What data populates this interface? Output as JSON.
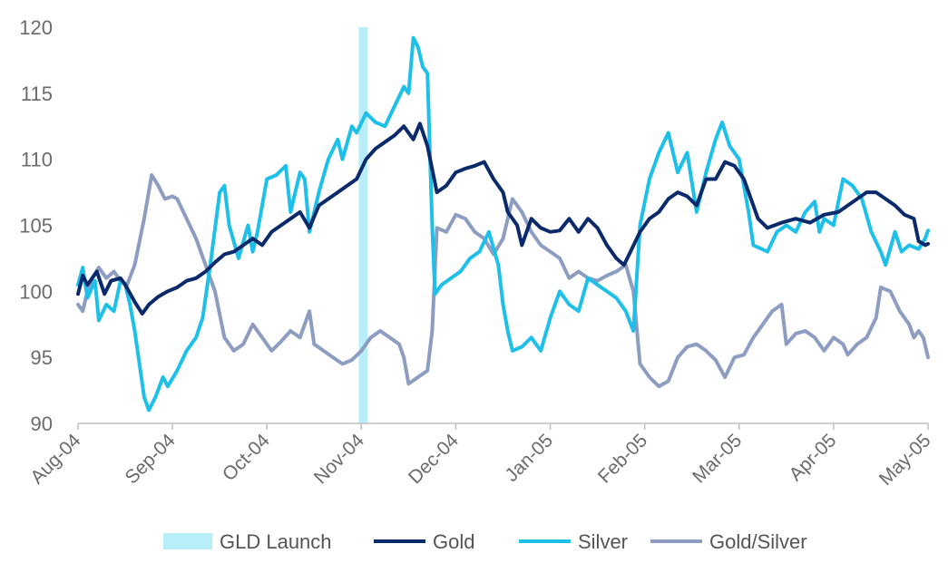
{
  "chart_data": {
    "type": "line",
    "title": "",
    "xlabel": "",
    "ylabel": "",
    "ylim": [
      90,
      120
    ],
    "yticks": [
      "90",
      "95",
      "100",
      "105",
      "110",
      "115",
      "120"
    ],
    "xlim": [
      0,
      9
    ],
    "categories": [
      "Aug-04",
      "Sep-04",
      "Oct-04",
      "Nov-04",
      "Dec-04",
      "Jan-05",
      "Feb-05",
      "Mar-05",
      "Apr-05",
      "May-05"
    ],
    "grid": false,
    "legend": "bottom",
    "annotations": [
      {
        "name": "GLD Launch",
        "x": 3.02,
        "color": "#b8eef8"
      }
    ],
    "series": [
      {
        "name": "Gold",
        "color": "#0b2a6b",
        "points": [
          [
            0,
            99.8
          ],
          [
            0.05,
            101.2
          ],
          [
            0.1,
            100.5
          ],
          [
            0.2,
            101.5
          ],
          [
            0.28,
            99.8
          ],
          [
            0.35,
            100.8
          ],
          [
            0.45,
            101.0
          ],
          [
            0.5,
            100.5
          ],
          [
            0.6,
            99.2
          ],
          [
            0.68,
            98.3
          ],
          [
            0.75,
            99.0
          ],
          [
            0.85,
            99.6
          ],
          [
            0.95,
            100.0
          ],
          [
            1.05,
            100.3
          ],
          [
            1.15,
            100.8
          ],
          [
            1.25,
            101.0
          ],
          [
            1.35,
            101.5
          ],
          [
            1.45,
            102.2
          ],
          [
            1.55,
            102.8
          ],
          [
            1.65,
            103.0
          ],
          [
            1.75,
            103.5
          ],
          [
            1.85,
            104.0
          ],
          [
            1.95,
            103.5
          ],
          [
            2.05,
            104.5
          ],
          [
            2.15,
            105.0
          ],
          [
            2.25,
            105.5
          ],
          [
            2.35,
            106.0
          ],
          [
            2.45,
            104.8
          ],
          [
            2.55,
            106.5
          ],
          [
            2.65,
            107.0
          ],
          [
            2.75,
            107.5
          ],
          [
            2.85,
            108.0
          ],
          [
            2.95,
            108.5
          ],
          [
            3.05,
            110.0
          ],
          [
            3.15,
            110.8
          ],
          [
            3.25,
            111.3
          ],
          [
            3.35,
            111.8
          ],
          [
            3.45,
            112.5
          ],
          [
            3.55,
            111.5
          ],
          [
            3.62,
            112.7
          ],
          [
            3.7,
            111.0
          ],
          [
            3.8,
            107.5
          ],
          [
            3.9,
            108.0
          ],
          [
            4.0,
            109.0
          ],
          [
            4.1,
            109.3
          ],
          [
            4.2,
            109.5
          ],
          [
            4.3,
            109.8
          ],
          [
            4.4,
            108.5
          ],
          [
            4.5,
            107.5
          ],
          [
            4.55,
            106.0
          ],
          [
            4.65,
            105.0
          ],
          [
            4.7,
            103.5
          ],
          [
            4.8,
            105.5
          ],
          [
            4.9,
            104.8
          ],
          [
            5.0,
            104.5
          ],
          [
            5.1,
            104.6
          ],
          [
            5.2,
            105.5
          ],
          [
            5.3,
            104.5
          ],
          [
            5.4,
            105.5
          ],
          [
            5.5,
            104.8
          ],
          [
            5.6,
            103.5
          ],
          [
            5.7,
            102.5
          ],
          [
            5.78,
            102.0
          ],
          [
            5.85,
            103.0
          ],
          [
            5.95,
            104.5
          ],
          [
            6.05,
            105.5
          ],
          [
            6.15,
            106.0
          ],
          [
            6.25,
            107.0
          ],
          [
            6.35,
            107.5
          ],
          [
            6.45,
            107.2
          ],
          [
            6.55,
            106.5
          ],
          [
            6.65,
            108.5
          ],
          [
            6.75,
            108.5
          ],
          [
            6.85,
            109.8
          ],
          [
            6.95,
            109.5
          ],
          [
            7.05,
            108.5
          ],
          [
            7.1,
            107.5
          ],
          [
            7.2,
            105.5
          ],
          [
            7.3,
            104.8
          ],
          [
            7.45,
            105.2
          ],
          [
            7.6,
            105.5
          ],
          [
            7.75,
            105.2
          ],
          [
            7.9,
            105.8
          ],
          [
            8.05,
            106.0
          ],
          [
            8.15,
            106.5
          ],
          [
            8.25,
            107.0
          ],
          [
            8.35,
            107.5
          ],
          [
            8.45,
            107.5
          ],
          [
            8.55,
            107.0
          ],
          [
            8.65,
            106.5
          ],
          [
            8.75,
            105.8
          ],
          [
            8.85,
            105.5
          ],
          [
            8.9,
            103.8
          ],
          [
            8.97,
            103.5
          ],
          [
            9.0,
            103.6
          ]
        ]
      },
      {
        "name": "Silver",
        "color": "#1ec0ea",
        "points": [
          [
            0,
            100.5
          ],
          [
            0.05,
            101.8
          ],
          [
            0.1,
            99.5
          ],
          [
            0.18,
            100.8
          ],
          [
            0.22,
            97.8
          ],
          [
            0.3,
            99.0
          ],
          [
            0.38,
            98.5
          ],
          [
            0.45,
            100.8
          ],
          [
            0.5,
            100.5
          ],
          [
            0.55,
            99.0
          ],
          [
            0.6,
            97.0
          ],
          [
            0.65,
            94.5
          ],
          [
            0.7,
            92.0
          ],
          [
            0.75,
            91.0
          ],
          [
            0.82,
            92.0
          ],
          [
            0.9,
            93.5
          ],
          [
            0.95,
            92.8
          ],
          [
            1.05,
            94.0
          ],
          [
            1.15,
            95.5
          ],
          [
            1.25,
            96.5
          ],
          [
            1.32,
            98.0
          ],
          [
            1.4,
            102.0
          ],
          [
            1.5,
            107.5
          ],
          [
            1.55,
            108.0
          ],
          [
            1.6,
            105.0
          ],
          [
            1.7,
            102.5
          ],
          [
            1.8,
            105.0
          ],
          [
            1.85,
            103.0
          ],
          [
            1.9,
            104.5
          ],
          [
            2.0,
            108.5
          ],
          [
            2.1,
            108.8
          ],
          [
            2.2,
            109.5
          ],
          [
            2.25,
            106.0
          ],
          [
            2.35,
            109.0
          ],
          [
            2.4,
            108.5
          ],
          [
            2.45,
            104.5
          ],
          [
            2.55,
            107.5
          ],
          [
            2.65,
            110.0
          ],
          [
            2.75,
            111.5
          ],
          [
            2.8,
            110.0
          ],
          [
            2.9,
            112.5
          ],
          [
            2.95,
            112.0
          ],
          [
            3.05,
            113.5
          ],
          [
            3.15,
            112.8
          ],
          [
            3.25,
            112.5
          ],
          [
            3.35,
            114.0
          ],
          [
            3.45,
            115.5
          ],
          [
            3.5,
            115.0
          ],
          [
            3.55,
            119.2
          ],
          [
            3.6,
            118.5
          ],
          [
            3.65,
            117.0
          ],
          [
            3.7,
            116.5
          ],
          [
            3.75,
            105.0
          ],
          [
            3.78,
            99.8
          ],
          [
            3.85,
            100.5
          ],
          [
            3.95,
            101.0
          ],
          [
            4.05,
            101.5
          ],
          [
            4.15,
            102.5
          ],
          [
            4.25,
            103.0
          ],
          [
            4.35,
            104.5
          ],
          [
            4.45,
            102.0
          ],
          [
            4.5,
            99.0
          ],
          [
            4.55,
            97.0
          ],
          [
            4.6,
            95.5
          ],
          [
            4.7,
            95.8
          ],
          [
            4.8,
            96.5
          ],
          [
            4.9,
            95.5
          ],
          [
            5.0,
            98.0
          ],
          [
            5.1,
            100.0
          ],
          [
            5.2,
            99.0
          ],
          [
            5.3,
            98.5
          ],
          [
            5.4,
            101.0
          ],
          [
            5.5,
            100.5
          ],
          [
            5.6,
            100.0
          ],
          [
            5.7,
            99.5
          ],
          [
            5.8,
            98.5
          ],
          [
            5.88,
            97.0
          ],
          [
            5.95,
            105.0
          ],
          [
            6.05,
            108.5
          ],
          [
            6.15,
            110.5
          ],
          [
            6.25,
            112.0
          ],
          [
            6.35,
            109.0
          ],
          [
            6.45,
            110.5
          ],
          [
            6.55,
            106.0
          ],
          [
            6.65,
            109.0
          ],
          [
            6.75,
            111.5
          ],
          [
            6.82,
            112.8
          ],
          [
            6.9,
            111.0
          ],
          [
            7.0,
            110.0
          ],
          [
            7.1,
            106.0
          ],
          [
            7.15,
            103.5
          ],
          [
            7.3,
            103.0
          ],
          [
            7.4,
            104.5
          ],
          [
            7.5,
            105.0
          ],
          [
            7.6,
            104.5
          ],
          [
            7.7,
            106.0
          ],
          [
            7.8,
            106.8
          ],
          [
            7.85,
            104.5
          ],
          [
            7.9,
            105.5
          ],
          [
            8.0,
            105.0
          ],
          [
            8.1,
            108.5
          ],
          [
            8.2,
            108.0
          ],
          [
            8.3,
            107.0
          ],
          [
            8.4,
            104.5
          ],
          [
            8.5,
            103.0
          ],
          [
            8.55,
            102.0
          ],
          [
            8.65,
            104.5
          ],
          [
            8.72,
            103.0
          ],
          [
            8.8,
            103.5
          ],
          [
            8.9,
            103.2
          ],
          [
            8.97,
            104.0
          ],
          [
            9.0,
            104.6
          ]
        ]
      },
      {
        "name": "Gold/Silver",
        "color": "#8d9dc2",
        "points": [
          [
            0,
            99.0
          ],
          [
            0.05,
            98.5
          ],
          [
            0.1,
            100.0
          ],
          [
            0.15,
            101.0
          ],
          [
            0.22,
            101.8
          ],
          [
            0.3,
            101.0
          ],
          [
            0.38,
            101.5
          ],
          [
            0.45,
            100.8
          ],
          [
            0.52,
            100.5
          ],
          [
            0.6,
            102.0
          ],
          [
            0.7,
            105.5
          ],
          [
            0.78,
            108.8
          ],
          [
            0.85,
            108.0
          ],
          [
            0.92,
            107.0
          ],
          [
            1.0,
            107.2
          ],
          [
            1.05,
            107.0
          ],
          [
            1.15,
            105.5
          ],
          [
            1.25,
            104.0
          ],
          [
            1.35,
            102.0
          ],
          [
            1.45,
            100.0
          ],
          [
            1.55,
            96.5
          ],
          [
            1.65,
            95.5
          ],
          [
            1.75,
            96.0
          ],
          [
            1.85,
            97.5
          ],
          [
            1.95,
            96.5
          ],
          [
            2.05,
            95.5
          ],
          [
            2.15,
            96.2
          ],
          [
            2.25,
            97.0
          ],
          [
            2.35,
            96.5
          ],
          [
            2.45,
            98.5
          ],
          [
            2.5,
            96.0
          ],
          [
            2.6,
            95.5
          ],
          [
            2.7,
            95.0
          ],
          [
            2.8,
            94.5
          ],
          [
            2.9,
            94.8
          ],
          [
            3.0,
            95.5
          ],
          [
            3.1,
            96.5
          ],
          [
            3.2,
            97.0
          ],
          [
            3.3,
            96.5
          ],
          [
            3.4,
            96.0
          ],
          [
            3.45,
            95.0
          ],
          [
            3.5,
            93.0
          ],
          [
            3.6,
            93.5
          ],
          [
            3.7,
            94.0
          ],
          [
            3.75,
            97.0
          ],
          [
            3.8,
            104.8
          ],
          [
            3.9,
            104.5
          ],
          [
            4.0,
            105.8
          ],
          [
            4.1,
            105.5
          ],
          [
            4.2,
            104.5
          ],
          [
            4.3,
            104.0
          ],
          [
            4.4,
            102.8
          ],
          [
            4.5,
            104.0
          ],
          [
            4.6,
            107.0
          ],
          [
            4.7,
            106.0
          ],
          [
            4.8,
            104.5
          ],
          [
            4.9,
            103.5
          ],
          [
            5.0,
            103.0
          ],
          [
            5.1,
            102.5
          ],
          [
            5.2,
            101.0
          ],
          [
            5.3,
            101.5
          ],
          [
            5.4,
            101.0
          ],
          [
            5.5,
            100.8
          ],
          [
            5.6,
            101.2
          ],
          [
            5.7,
            101.5
          ],
          [
            5.8,
            102.0
          ],
          [
            5.88,
            100.0
          ],
          [
            5.95,
            94.5
          ],
          [
            6.05,
            93.5
          ],
          [
            6.15,
            92.8
          ],
          [
            6.25,
            93.2
          ],
          [
            6.35,
            95.0
          ],
          [
            6.45,
            95.8
          ],
          [
            6.55,
            96.0
          ],
          [
            6.65,
            95.5
          ],
          [
            6.75,
            94.8
          ],
          [
            6.85,
            93.5
          ],
          [
            6.95,
            95.0
          ],
          [
            7.05,
            95.2
          ],
          [
            7.15,
            96.5
          ],
          [
            7.25,
            97.5
          ],
          [
            7.35,
            98.5
          ],
          [
            7.45,
            99.0
          ],
          [
            7.5,
            96.0
          ],
          [
            7.6,
            96.8
          ],
          [
            7.7,
            97.0
          ],
          [
            7.8,
            96.5
          ],
          [
            7.9,
            95.5
          ],
          [
            8.0,
            96.5
          ],
          [
            8.1,
            96.0
          ],
          [
            8.15,
            95.2
          ],
          [
            8.25,
            96.0
          ],
          [
            8.35,
            96.5
          ],
          [
            8.45,
            98.0
          ],
          [
            8.5,
            100.3
          ],
          [
            8.6,
            100.0
          ],
          [
            8.7,
            98.5
          ],
          [
            8.8,
            97.5
          ],
          [
            8.85,
            96.5
          ],
          [
            8.9,
            97.0
          ],
          [
            8.95,
            96.5
          ],
          [
            9.0,
            95.0
          ]
        ]
      }
    ]
  },
  "legend_items": [
    {
      "label": "GLD Launch",
      "color": "#b8eef8",
      "kind": "box"
    },
    {
      "label": "Gold",
      "color": "#0b2a6b",
      "kind": "line"
    },
    {
      "label": "Silver",
      "color": "#1ec0ea",
      "kind": "line"
    },
    {
      "label": "Gold/Silver",
      "color": "#8d9dc2",
      "kind": "line"
    }
  ]
}
